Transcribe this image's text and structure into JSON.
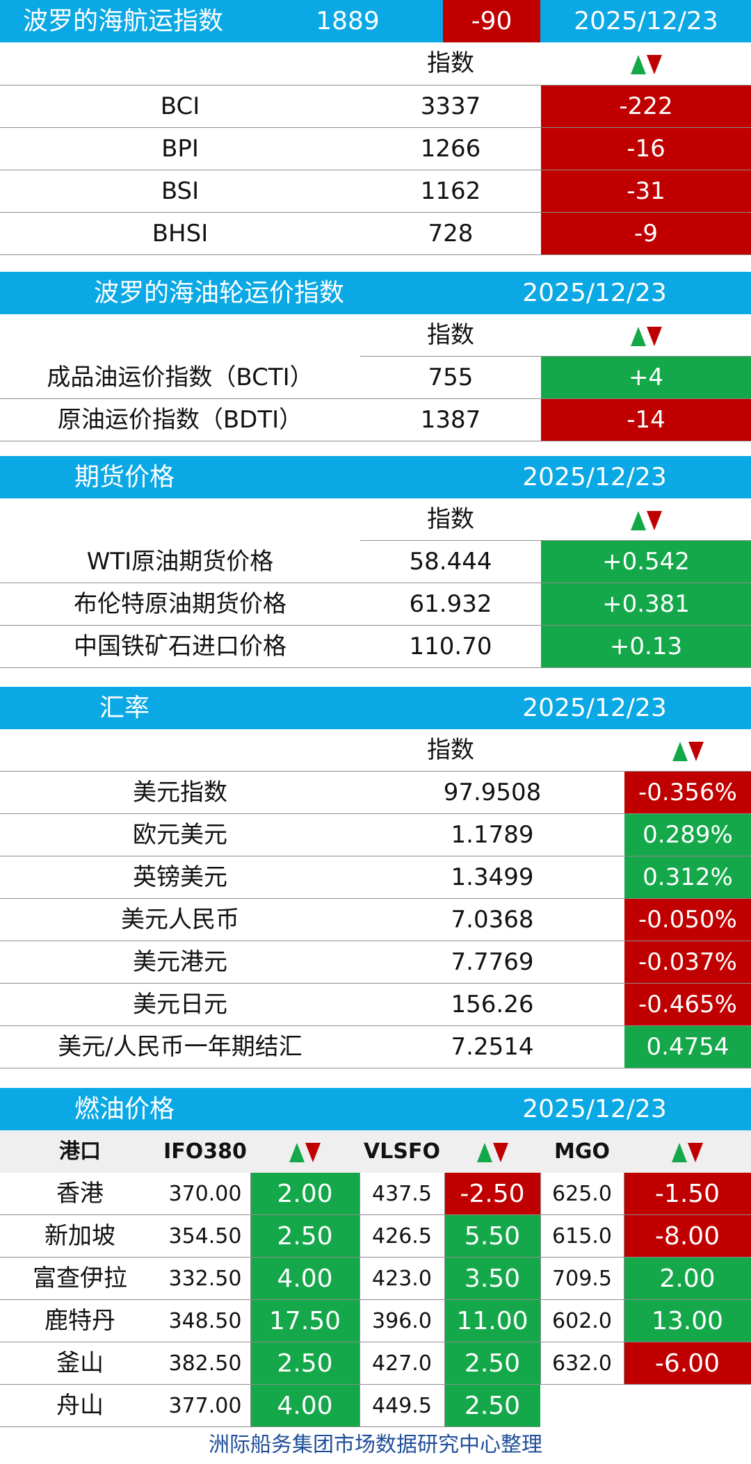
{
  "baltic_dry": {
    "title": "波罗的海航运指数",
    "value": "1889",
    "change": "-90",
    "date": "2025/12/23",
    "header_index": "指数",
    "rows": [
      {
        "name": "BCI",
        "value": "3337",
        "change": "-222",
        "direction": "down"
      },
      {
        "name": "BPI",
        "value": "1266",
        "change": "-16",
        "direction": "down"
      },
      {
        "name": "BSI",
        "value": "1162",
        "change": "-31",
        "direction": "down"
      },
      {
        "name": "BHSI",
        "value": "728",
        "change": "-9",
        "direction": "down"
      }
    ]
  },
  "baltic_tanker": {
    "title": "波罗的海油轮运价指数",
    "date": "2025/12/23",
    "header_index": "指数",
    "rows": [
      {
        "name": "成品油运价指数（BCTI）",
        "value": "755",
        "change": "+4",
        "direction": "up"
      },
      {
        "name": "原油运价指数（BDTI）",
        "value": "1387",
        "change": "-14",
        "direction": "down"
      }
    ]
  },
  "futures": {
    "title": "期货价格",
    "date": "2025/12/23",
    "header_index": "指数",
    "rows": [
      {
        "name": "WTI原油期货价格",
        "value": "58.444",
        "change": "+0.542",
        "direction": "up"
      },
      {
        "name": "布伦特原油期货价格",
        "value": "61.932",
        "change": "+0.381",
        "direction": "up"
      },
      {
        "name": "中国铁矿石进口价格",
        "value": "110.70",
        "change": "+0.13",
        "direction": "up"
      }
    ]
  },
  "fx": {
    "title": "汇率",
    "date": "2025/12/23",
    "header_index": "指数",
    "rows": [
      {
        "name": "美元指数",
        "value": "97.9508",
        "change": "-0.356%",
        "direction": "down"
      },
      {
        "name": "欧元美元",
        "value": "1.1789",
        "change": "0.289%",
        "direction": "up"
      },
      {
        "name": "英镑美元",
        "value": "1.3499",
        "change": "0.312%",
        "direction": "up"
      },
      {
        "name": "美元人民币",
        "value": "7.0368",
        "change": "-0.050%",
        "direction": "down"
      },
      {
        "name": "美元港元",
        "value": "7.7769",
        "change": "-0.037%",
        "direction": "down"
      },
      {
        "name": "美元日元",
        "value": "156.26",
        "change": "-0.465%",
        "direction": "down"
      },
      {
        "name": "美元/人民币一年期结汇",
        "value": "7.2514",
        "change": "0.4754",
        "direction": "up"
      }
    ]
  },
  "bunker": {
    "title": "燃油价格",
    "date": "2025/12/23",
    "headers": {
      "port": "港口",
      "ifo": "IFO380",
      "vlsfo": "VLSFO",
      "mgo": "MGO"
    },
    "rows": [
      {
        "port": "香港",
        "ifo": "370.00",
        "ifo_chg": "2.00",
        "ifo_dir": "up",
        "vlsfo": "437.5",
        "vlsfo_chg": "-2.50",
        "vlsfo_dir": "down",
        "mgo": "625.0",
        "mgo_chg": "-1.50",
        "mgo_dir": "down"
      },
      {
        "port": "新加坡",
        "ifo": "354.50",
        "ifo_chg": "2.50",
        "ifo_dir": "up",
        "vlsfo": "426.5",
        "vlsfo_chg": "5.50",
        "vlsfo_dir": "up",
        "mgo": "615.0",
        "mgo_chg": "-8.00",
        "mgo_dir": "down"
      },
      {
        "port": "富查伊拉",
        "ifo": "332.50",
        "ifo_chg": "4.00",
        "ifo_dir": "up",
        "vlsfo": "423.0",
        "vlsfo_chg": "3.50",
        "vlsfo_dir": "up",
        "mgo": "709.5",
        "mgo_chg": "2.00",
        "mgo_dir": "up"
      },
      {
        "port": "鹿特丹",
        "ifo": "348.50",
        "ifo_chg": "17.50",
        "ifo_dir": "up",
        "vlsfo": "396.0",
        "vlsfo_chg": "11.00",
        "vlsfo_dir": "up",
        "mgo": "602.0",
        "mgo_chg": "13.00",
        "mgo_dir": "up"
      },
      {
        "port": "釜山",
        "ifo": "382.50",
        "ifo_chg": "2.50",
        "ifo_dir": "up",
        "vlsfo": "427.0",
        "vlsfo_chg": "2.50",
        "vlsfo_dir": "up",
        "mgo": "632.0",
        "mgo_chg": "-6.00",
        "mgo_dir": "down"
      },
      {
        "port": "舟山",
        "ifo": "377.00",
        "ifo_chg": "4.00",
        "ifo_dir": "up",
        "vlsfo": "449.5",
        "vlsfo_chg": "2.50",
        "vlsfo_dir": "up",
        "mgo": "",
        "mgo_chg": "",
        "mgo_dir": ""
      }
    ]
  },
  "footer": "洲际船务集团市场数据研究中心整理",
  "colors": {
    "header_blue": "#0aa8e4",
    "up_green": "#14a84a",
    "down_red": "#c00000",
    "footer_blue": "#1f4e99"
  }
}
